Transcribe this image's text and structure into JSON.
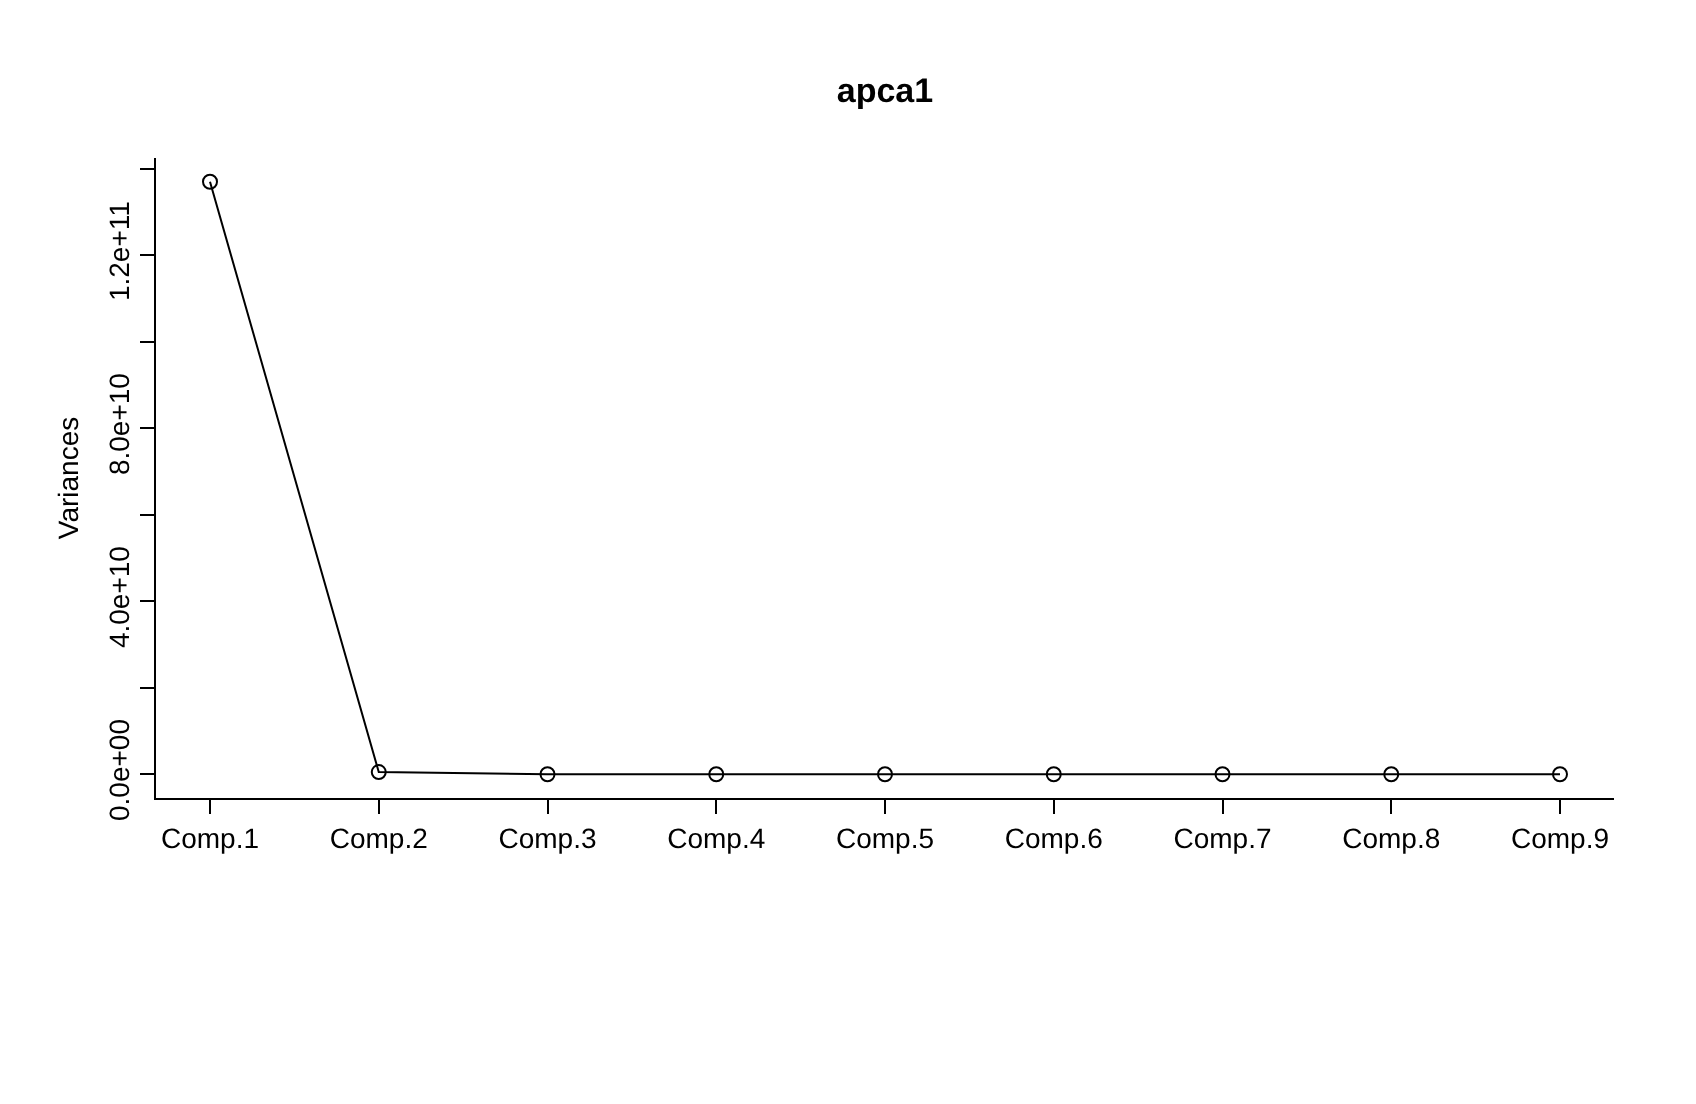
{
  "chart_data": {
    "type": "line",
    "title": "apca1",
    "ylabel": "Variances",
    "categories": [
      "Comp.1",
      "Comp.2",
      "Comp.3",
      "Comp.4",
      "Comp.5",
      "Comp.6",
      "Comp.7",
      "Comp.8",
      "Comp.9"
    ],
    "series": [
      {
        "color": "#000000",
        "values": [
          137000000000,
          500000000,
          0,
          0,
          0,
          0,
          0,
          0,
          0
        ]
      }
    ],
    "ylim": [
      -5500000000,
      142500000000
    ],
    "yticks": [
      {
        "value": 0,
        "label": "0.0e+00"
      },
      {
        "value": 20000000000,
        "label": null
      },
      {
        "value": 40000000000,
        "label": "4.0e+10"
      },
      {
        "value": 60000000000,
        "label": null
      },
      {
        "value": 80000000000,
        "label": "8.0e+10"
      },
      {
        "value": 100000000000,
        "label": null
      },
      {
        "value": 120000000000,
        "label": "1.2e+11"
      },
      {
        "value": 140000000000,
        "label": null
      }
    ],
    "marker": "circle",
    "line_style": "solid"
  }
}
